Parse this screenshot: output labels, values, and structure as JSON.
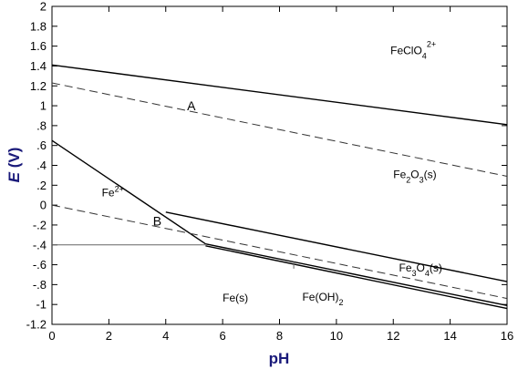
{
  "chart_data": {
    "type": "line",
    "xlabel": "pH",
    "ylabel_italic": "E",
    "ylabel_unit": "(V)",
    "xlim": [
      0,
      16
    ],
    "ylim": [
      -1.2,
      2
    ],
    "x_ticks": [
      0,
      2,
      4,
      6,
      8,
      10,
      12,
      14,
      16
    ],
    "y_ticks": [
      {
        "value": 2,
        "label": "2"
      },
      {
        "value": 1.8,
        "label": "1.8"
      },
      {
        "value": 1.6,
        "label": "1.6"
      },
      {
        "value": 1.4,
        "label": "1.4"
      },
      {
        "value": 1.2,
        "label": "1.2"
      },
      {
        "value": 1,
        "label": "1"
      },
      {
        "value": 0.8,
        "label": ".8"
      },
      {
        "value": 0.6,
        "label": ".6"
      },
      {
        "value": 0.4,
        "label": ".4"
      },
      {
        "value": 0.2,
        "label": ".2"
      },
      {
        "value": 0,
        "label": "0"
      },
      {
        "value": -0.2,
        "label": "-.2"
      },
      {
        "value": -0.4,
        "label": "-.4"
      },
      {
        "value": -0.6,
        "label": "-.6"
      },
      {
        "value": -0.8,
        "label": "-.8"
      },
      {
        "value": -1,
        "label": "-1"
      },
      {
        "value": -1.2,
        "label": "-1.2"
      }
    ],
    "grid": false,
    "series": [
      {
        "id": "fecl04-boundary",
        "style": "solid",
        "points": [
          [
            0,
            1.41
          ],
          [
            16,
            0.81
          ]
        ]
      },
      {
        "id": "water-oxidation-a",
        "style": "dashed",
        "points": [
          [
            0,
            1.23
          ],
          [
            16,
            0.29
          ]
        ]
      },
      {
        "id": "fe2-fe2o3-boundary",
        "style": "solid",
        "points": [
          [
            0,
            0.65
          ],
          [
            5.4,
            -0.39
          ]
        ]
      },
      {
        "id": "fe2o3-fe3o4-boundary",
        "style": "solid",
        "points": [
          [
            4.0,
            -0.07
          ],
          [
            16,
            -0.77
          ]
        ]
      },
      {
        "id": "water-reduction-b",
        "style": "dashed",
        "points": [
          [
            0,
            0.0
          ],
          [
            16,
            -0.94
          ]
        ]
      },
      {
        "id": "fe2-fe-boundary",
        "style": "solid-thin",
        "points": [
          [
            0,
            -0.4
          ],
          [
            5.4,
            -0.4
          ]
        ]
      },
      {
        "id": "fe3o4-feoh2-boundary",
        "style": "solid",
        "points": [
          [
            5.4,
            -0.39
          ],
          [
            16,
            -1.01
          ]
        ]
      },
      {
        "id": "feoh2-fe-boundary",
        "style": "solid",
        "points": [
          [
            5.4,
            -0.41
          ],
          [
            16,
            -1.04
          ]
        ]
      },
      {
        "id": "feoh2-pointer",
        "style": "solid-thin",
        "points": [
          [
            8.5,
            -0.57
          ],
          [
            8.5,
            -0.64
          ]
        ]
      }
    ],
    "line_labels": [
      {
        "text": "A",
        "x": 4.9,
        "y": 1.0
      },
      {
        "text": "B",
        "x": 3.7,
        "y": -0.16
      }
    ],
    "region_labels": {
      "fecl04": {
        "base": "FeClO",
        "sub": "4",
        "sup": "2+",
        "x": 11.9,
        "y": 1.52
      },
      "fe2o3": {
        "parts": [
          {
            "t": "Fe"
          },
          {
            "t": "2",
            "sub": true
          },
          {
            "t": "O"
          },
          {
            "t": "3",
            "sub": true
          },
          {
            "t": "(s)"
          }
        ],
        "x": 12.0,
        "y": 0.27
      },
      "fe2plus": {
        "base": "Fe",
        "sup": "2+",
        "x": 1.75,
        "y": 0.09
      },
      "fe3o4": {
        "parts": [
          {
            "t": "Fe"
          },
          {
            "t": "3",
            "sub": true
          },
          {
            "t": "O"
          },
          {
            "t": "4",
            "sub": true
          },
          {
            "t": "(s)"
          }
        ],
        "x": 12.2,
        "y": -0.67
      },
      "feoh2": {
        "base": "Fe(OH)",
        "sub": "2",
        "x": 8.8,
        "y": -0.96
      },
      "fes": {
        "text": "Fe(s)",
        "x": 6.0,
        "y": -0.97
      }
    },
    "colors": {
      "axis_title": "#1a1a7a",
      "lines": "#000000",
      "thin_line": "#666666"
    }
  }
}
